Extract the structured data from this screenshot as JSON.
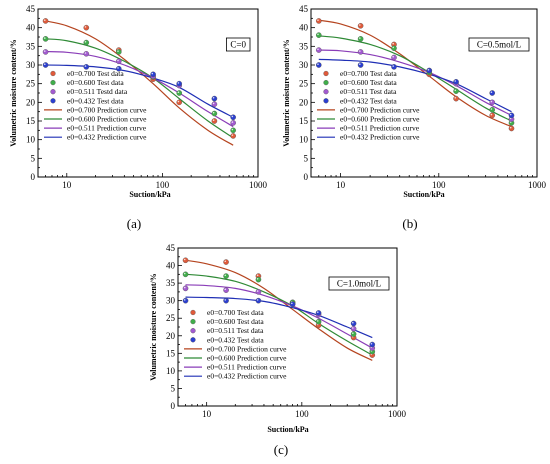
{
  "chart_data": [
    {
      "type": "scatter",
      "panel_label": "(a)",
      "condition": "C=0",
      "xlabel": "Suction/kPa",
      "ylabel": "Volumetric moisture content/%",
      "xscale": "log",
      "xlim": [
        5,
        1000
      ],
      "ylim": [
        0,
        45
      ],
      "xticks": [
        "10",
        "100",
        "1000"
      ],
      "yticks": [
        "0",
        "5",
        "10",
        "15",
        "20",
        "25",
        "30",
        "35",
        "40",
        "45"
      ],
      "legend_position": "lower-left",
      "legend": [
        "e0=0.700 Test data",
        "e0=0.600 Test data",
        "e0=0.511 Testd data",
        "e0=0.432 Test data",
        "e0=0.700 Prediction curve",
        "e0=0.600 Prediction curve",
        "e0=0.511 Prediction curve",
        "e0=0.432 Prediction curve"
      ],
      "series": [
        {
          "name": "e0=0.700",
          "color": "#e05a3a",
          "line_color": "#b5441f",
          "x": [
            6,
            16,
            35,
            80,
            150,
            350,
            550
          ],
          "y": [
            41.8,
            40.0,
            34.0,
            26.2,
            20.0,
            15.0,
            11.0
          ],
          "curve_x": [
            6,
            10,
            20,
            40,
            80,
            150,
            300,
            550
          ],
          "curve_y": [
            41.8,
            40.5,
            37.0,
            31.5,
            25.0,
            18.5,
            12.5,
            8.5
          ]
        },
        {
          "name": "e0=0.600",
          "color": "#3fae4a",
          "line_color": "#2f8a36",
          "x": [
            6,
            16,
            35,
            80,
            150,
            350,
            550
          ],
          "y": [
            37.0,
            36.0,
            33.5,
            26.8,
            22.5,
            17.0,
            12.5
          ],
          "curve_x": [
            6,
            10,
            20,
            40,
            80,
            150,
            300,
            550
          ],
          "curve_y": [
            37.0,
            36.5,
            34.5,
            31.0,
            26.5,
            21.0,
            15.0,
            10.5
          ]
        },
        {
          "name": "e0=0.511",
          "color": "#a25ad0",
          "line_color": "#8a3db8",
          "x": [
            6,
            16,
            35,
            80,
            150,
            350,
            550
          ],
          "y": [
            33.5,
            33.0,
            31.0,
            27.0,
            24.5,
            19.5,
            14.5
          ],
          "curve_x": [
            6,
            10,
            20,
            40,
            80,
            150,
            300,
            550
          ],
          "curve_y": [
            33.6,
            33.4,
            32.3,
            30.0,
            26.5,
            22.5,
            17.5,
            13.5
          ]
        },
        {
          "name": "e0=0.432",
          "color": "#2b3fd0",
          "line_color": "#1f2fb5",
          "x": [
            6,
            16,
            35,
            80,
            150,
            350,
            550
          ],
          "y": [
            30.0,
            29.5,
            29.0,
            27.5,
            25.0,
            21.0,
            16.0
          ],
          "curve_x": [
            6,
            10,
            20,
            40,
            80,
            150,
            300,
            550
          ],
          "curve_y": [
            30.0,
            29.9,
            29.5,
            28.5,
            26.5,
            24.0,
            19.5,
            16.0
          ]
        }
      ]
    },
    {
      "type": "scatter",
      "panel_label": "(b)",
      "condition": "C=0.5mol/L",
      "xlabel": "Suction/kPa",
      "ylabel": "Volumetric moisture content/%",
      "xscale": "log",
      "xlim": [
        5,
        1000
      ],
      "ylim": [
        0,
        45
      ],
      "xticks": [
        "10",
        "100",
        "1000"
      ],
      "yticks": [
        "0",
        "5",
        "10",
        "15",
        "20",
        "25",
        "30",
        "35",
        "40",
        "45"
      ],
      "legend_position": "lower-left",
      "legend": [
        "e0=0.700 Test data",
        "e0=0.600 Test data",
        "e0=0.511 Test data",
        "e0=0.432 Test data",
        "e0=0.700 Prediction curve",
        "e0=0.600 Prediction curve",
        "e0=0.511 Prediction curve",
        "e0=0.432 Prediction curve"
      ],
      "series": [
        {
          "name": "e0=0.700",
          "color": "#e05a3a",
          "line_color": "#b5441f",
          "x": [
            6,
            16,
            35,
            80,
            150,
            350,
            550
          ],
          "y": [
            41.8,
            40.5,
            35.5,
            27.5,
            21.0,
            16.5,
            13.0
          ],
          "curve_x": [
            6,
            10,
            20,
            40,
            80,
            150,
            300,
            550
          ],
          "curve_y": [
            42.0,
            41.0,
            38.0,
            33.0,
            27.0,
            21.5,
            16.5,
            13.5
          ]
        },
        {
          "name": "e0=0.600",
          "color": "#3fae4a",
          "line_color": "#2f8a36",
          "x": [
            6,
            16,
            35,
            80,
            150,
            350,
            550
          ],
          "y": [
            38.0,
            37.0,
            34.5,
            28.0,
            23.0,
            18.0,
            14.5
          ],
          "curve_x": [
            6,
            10,
            20,
            40,
            80,
            150,
            300,
            550
          ],
          "curve_y": [
            37.8,
            37.2,
            35.5,
            32.5,
            28.0,
            23.5,
            18.5,
            15.0
          ]
        },
        {
          "name": "e0=0.511",
          "color": "#a25ad0",
          "line_color": "#8a3db8",
          "x": [
            6,
            16,
            35,
            80,
            150,
            350,
            550
          ],
          "y": [
            34.0,
            33.5,
            32.0,
            28.5,
            25.0,
            20.0,
            15.5
          ],
          "curve_x": [
            6,
            10,
            20,
            40,
            80,
            150,
            300,
            550
          ],
          "curve_y": [
            34.0,
            33.8,
            32.8,
            30.8,
            28.0,
            24.5,
            20.0,
            16.5
          ]
        },
        {
          "name": "e0=0.432",
          "color": "#2b3fd0",
          "line_color": "#1f2fb5",
          "x": [
            6,
            16,
            35,
            80,
            150,
            350,
            550
          ],
          "y": [
            30.0,
            30.0,
            29.5,
            28.5,
            25.5,
            22.5,
            16.5
          ],
          "curve_x": [
            6,
            10,
            20,
            40,
            80,
            150,
            300,
            550
          ],
          "curve_y": [
            31.5,
            31.3,
            30.8,
            29.5,
            27.5,
            25.0,
            21.0,
            17.5
          ]
        }
      ]
    },
    {
      "type": "scatter",
      "panel_label": "(c)",
      "condition": "C=1.0mol/L",
      "xlabel": "Suction/kPa",
      "ylabel": "Volumetric moisture content/%",
      "xscale": "log",
      "xlim": [
        5,
        1000
      ],
      "ylim": [
        0,
        45
      ],
      "xticks": [
        "10",
        "100",
        "1000"
      ],
      "yticks": [
        "0",
        "5",
        "10",
        "15",
        "20",
        "25",
        "30",
        "35",
        "40",
        "45"
      ],
      "legend_position": "lower-left",
      "legend": [
        "e0=0.700 Test data",
        "e0=0.600 Test data",
        "e0=0.511 Test data",
        "e0=0.432 Test data",
        "e0=0.700 Prediction curve",
        "e0=0.600 Prediction curve",
        "e0=0.511 Prediction curve",
        "e0=0.432 Prediction curve"
      ],
      "series": [
        {
          "name": "e0=0.700",
          "color": "#e05a3a",
          "line_color": "#b5441f",
          "x": [
            6,
            16,
            35,
            80,
            150,
            350,
            550
          ],
          "y": [
            41.5,
            41.0,
            37.0,
            29.5,
            23.0,
            19.5,
            14.5
          ],
          "curve_x": [
            6,
            10,
            20,
            40,
            80,
            150,
            300,
            550
          ],
          "curve_y": [
            41.5,
            40.5,
            38.0,
            33.5,
            27.5,
            22.0,
            16.5,
            13.0
          ]
        },
        {
          "name": "e0=0.600",
          "color": "#3fae4a",
          "line_color": "#2f8a36",
          "x": [
            6,
            16,
            35,
            80,
            150,
            350,
            550
          ],
          "y": [
            37.5,
            37.0,
            36.0,
            29.5,
            24.0,
            20.5,
            15.5
          ],
          "curve_x": [
            6,
            10,
            20,
            40,
            80,
            150,
            300,
            550
          ],
          "curve_y": [
            37.5,
            37.0,
            35.5,
            32.5,
            28.5,
            23.5,
            18.5,
            14.5
          ]
        },
        {
          "name": "e0=0.511",
          "color": "#a25ad0",
          "line_color": "#8a3db8",
          "x": [
            6,
            16,
            35,
            80,
            150,
            350,
            550
          ],
          "y": [
            33.5,
            33.0,
            32.5,
            29.0,
            26.0,
            22.0,
            16.5
          ],
          "curve_x": [
            6,
            10,
            20,
            40,
            80,
            150,
            300,
            550
          ],
          "curve_y": [
            34.5,
            34.3,
            33.5,
            31.5,
            28.5,
            25.0,
            20.5,
            16.5
          ]
        },
        {
          "name": "e0=0.432",
          "color": "#2b3fd0",
          "line_color": "#1f2fb5",
          "x": [
            6,
            16,
            35,
            80,
            150,
            350,
            550
          ],
          "y": [
            30.0,
            30.0,
            30.0,
            29.0,
            26.5,
            23.5,
            17.5
          ],
          "curve_x": [
            6,
            10,
            20,
            40,
            80,
            150,
            300,
            550
          ],
          "curve_y": [
            31.0,
            30.9,
            30.6,
            29.8,
            28.0,
            25.8,
            22.5,
            19.5
          ]
        }
      ]
    }
  ]
}
